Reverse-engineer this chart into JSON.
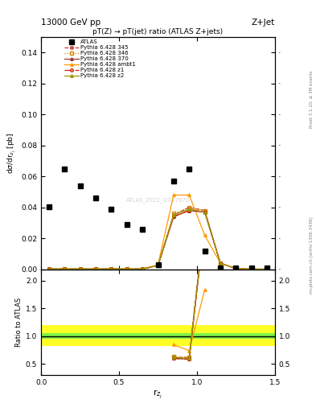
{
  "title_top": "13000 GeV pp",
  "title_right": "Z+Jet",
  "plot_title": "pT(Z) → pT(jet) ratio (ATLAS Z+jets)",
  "watermark": "ATLAS_2022_I2077570",
  "rivet_label": "Rivet 3.1.10, ≥ 3M events",
  "arxiv_label": "mcplots.cern.ch [arXiv:1306.3436]",
  "xlim": [
    0,
    1.5
  ],
  "ylim_main": [
    0,
    0.15
  ],
  "ylim_ratio": [
    0.3,
    2.2
  ],
  "atlas_x": [
    0.05,
    0.15,
    0.25,
    0.35,
    0.45,
    0.55,
    0.65,
    0.75,
    0.85,
    0.95,
    1.05,
    1.15,
    1.25,
    1.35,
    1.45
  ],
  "atlas_y": [
    0.0405,
    0.065,
    0.054,
    0.046,
    0.039,
    0.029,
    0.026,
    0.003,
    0.057,
    0.065,
    0.012,
    0.001,
    0.001,
    0.001,
    0.001
  ],
  "mc_x": [
    0.05,
    0.15,
    0.25,
    0.35,
    0.45,
    0.55,
    0.65,
    0.75,
    0.85,
    0.95,
    1.05,
    1.15,
    1.25,
    1.35,
    1.45
  ],
  "p345_y": [
    0.0002,
    0.0002,
    0.0002,
    0.0002,
    0.0002,
    0.0002,
    0.0002,
    0.0025,
    0.035,
    0.04,
    0.038,
    0.004,
    0.0005,
    0.0001,
    0.0001
  ],
  "p346_y": [
    0.0002,
    0.0002,
    0.0002,
    0.0002,
    0.0002,
    0.0002,
    0.0002,
    0.0025,
    0.036,
    0.04,
    0.038,
    0.004,
    0.0005,
    0.0001,
    0.0001
  ],
  "p370_y": [
    0.0002,
    0.0002,
    0.0002,
    0.0002,
    0.0002,
    0.0002,
    0.0002,
    0.0025,
    0.034,
    0.038,
    0.037,
    0.004,
    0.0005,
    0.0001,
    0.0001
  ],
  "pambt1_y": [
    0.0002,
    0.0002,
    0.0002,
    0.0002,
    0.0002,
    0.0002,
    0.0002,
    0.003,
    0.048,
    0.048,
    0.022,
    0.004,
    0.0005,
    0.0001,
    0.0001
  ],
  "pz1_y": [
    0.0002,
    0.0002,
    0.0002,
    0.0002,
    0.0002,
    0.0002,
    0.0002,
    0.0025,
    0.034,
    0.038,
    0.037,
    0.004,
    0.0005,
    0.0001,
    0.0001
  ],
  "pz2_y": [
    0.0002,
    0.0002,
    0.0002,
    0.0002,
    0.0002,
    0.0002,
    0.0002,
    0.0025,
    0.035,
    0.039,
    0.037,
    0.004,
    0.0005,
    0.0001,
    0.0001
  ],
  "ratio_yellow_low": [
    0.82,
    0.82,
    0.82,
    0.82,
    0.82,
    0.82,
    0.82,
    0.82,
    0.82,
    0.82,
    0.82,
    0.82,
    0.82,
    0.82,
    0.82
  ],
  "ratio_yellow_high": [
    1.2,
    1.2,
    1.2,
    1.2,
    1.2,
    1.2,
    1.2,
    1.2,
    1.2,
    1.2,
    1.2,
    1.2,
    1.2,
    1.2,
    1.2
  ],
  "ratio_green_low": [
    0.95,
    0.95,
    0.95,
    0.95,
    0.95,
    0.95,
    0.95,
    0.95,
    0.95,
    0.95,
    0.95,
    0.95,
    0.95,
    0.95,
    0.95
  ],
  "ratio_green_high": [
    1.05,
    1.05,
    1.05,
    1.05,
    1.05,
    1.05,
    1.05,
    1.05,
    1.05,
    1.05,
    1.05,
    1.05,
    1.05,
    1.05,
    1.05
  ],
  "color_345": "#cc3333",
  "color_346": "#cc8800",
  "color_370": "#993333",
  "color_ambt1": "#ff9900",
  "color_z1": "#cc2200",
  "color_z2": "#999900",
  "xticks": [
    0,
    0.5,
    1.0,
    1.5
  ],
  "yticks_main": [
    0,
    0.02,
    0.04,
    0.06,
    0.08,
    0.1,
    0.12,
    0.14
  ],
  "yticks_ratio": [
    0.5,
    1.0,
    1.5,
    2.0
  ]
}
